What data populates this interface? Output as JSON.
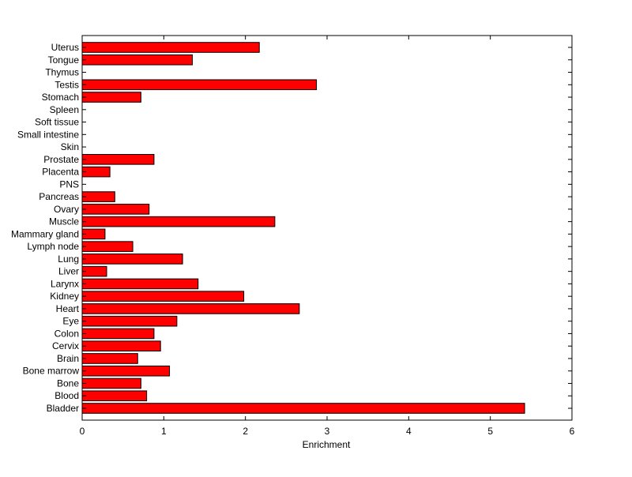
{
  "chart_data": {
    "type": "bar",
    "orientation": "horizontal",
    "title": "",
    "xlabel": "Enrichment",
    "ylabel": "",
    "xlim": [
      0,
      6
    ],
    "xticks": [
      0,
      1,
      2,
      3,
      4,
      5,
      6
    ],
    "grid": false,
    "legend": "none",
    "bar_color": "#ff0000",
    "bar_edge_color": "#000000",
    "categories": [
      "Bladder",
      "Blood",
      "Bone",
      "Bone marrow",
      "Brain",
      "Cervix",
      "Colon",
      "Eye",
      "Heart",
      "Kidney",
      "Larynx",
      "Liver",
      "Lung",
      "Lymph node",
      "Mammary gland",
      "Muscle",
      "Ovary",
      "Pancreas",
      "PNS",
      "Placenta",
      "Prostate",
      "Skin",
      "Small intestine",
      "Soft tissue",
      "Spleen",
      "Stomach",
      "Testis",
      "Thymus",
      "Tongue",
      "Uterus"
    ],
    "values": [
      5.42,
      0.79,
      0.72,
      1.07,
      0.68,
      0.96,
      0.88,
      1.16,
      2.66,
      1.98,
      1.42,
      0.3,
      1.23,
      0.62,
      0.28,
      2.36,
      0.82,
      0.4,
      0,
      0.34,
      0.88,
      0,
      0,
      0,
      0,
      0.72,
      2.87,
      0,
      1.35,
      2.17
    ]
  }
}
